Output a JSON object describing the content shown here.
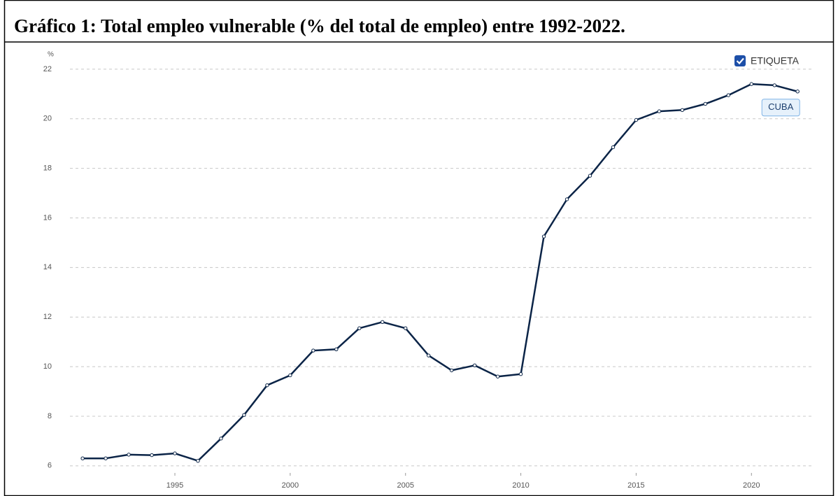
{
  "chart_data": {
    "type": "line",
    "title": "Gráfico 1: Total empleo vulnerable (% del total de empleo) entre 1992-2022.",
    "y_label": "%",
    "legend_label": "ETIQUETA",
    "x": [
      1991,
      1992,
      1993,
      1994,
      1995,
      1996,
      1997,
      1998,
      1999,
      2000,
      2001,
      2002,
      2003,
      2004,
      2005,
      2006,
      2007,
      2008,
      2009,
      2010,
      2011,
      2012,
      2013,
      2014,
      2015,
      2016,
      2017,
      2018,
      2019,
      2020,
      2021,
      2022
    ],
    "series": [
      {
        "name": "CUBA",
        "color": "#0b2447",
        "values": [
          6.3,
          6.3,
          6.45,
          6.43,
          6.5,
          6.2,
          7.1,
          8.05,
          9.25,
          9.65,
          10.65,
          10.7,
          11.55,
          11.8,
          11.55,
          10.45,
          9.85,
          10.05,
          9.6,
          9.7,
          15.25,
          16.75,
          17.7,
          18.85,
          19.95,
          20.3,
          20.35,
          20.6,
          20.95,
          21.4,
          21.35,
          21.1
        ]
      }
    ],
    "xlim": [
      1990.45,
      2022.6
    ],
    "ylim": [
      5.6,
      22.25
    ],
    "xticks": [
      1995,
      2000,
      2005,
      2010,
      2015,
      2020
    ],
    "yticks": [
      6,
      8,
      10,
      12,
      14,
      16,
      18,
      20,
      22
    ],
    "grid": true
  }
}
